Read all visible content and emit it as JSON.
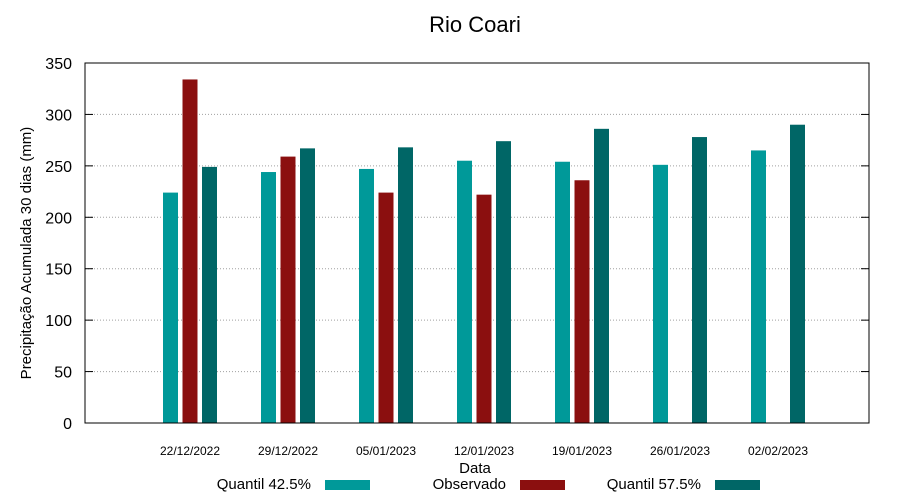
{
  "chart_data": {
    "type": "bar",
    "title": "Rio Coari",
    "xlabel": "Data",
    "ylabel": "Precipitação Acumulada 30 dias (mm)",
    "ylim": [
      0,
      350
    ],
    "yticks": [
      0,
      50,
      100,
      150,
      200,
      250,
      300,
      350
    ],
    "grid": true,
    "legend_position": "bottom",
    "categories": [
      "22/12/2022",
      "29/12/2022",
      "05/01/2023",
      "12/01/2023",
      "19/01/2023",
      "26/01/2023",
      "02/02/2023"
    ],
    "series": [
      {
        "name": "Quantil 42.5%",
        "color": "#009999",
        "values": [
          224,
          244,
          247,
          255,
          254,
          251,
          265
        ]
      },
      {
        "name": "Observado",
        "color": "#8b0f0f",
        "values": [
          334,
          259,
          224,
          222,
          236,
          null,
          null
        ]
      },
      {
        "name": "Quantil 57.5%",
        "color": "#006666",
        "values": [
          249,
          267,
          268,
          274,
          286,
          278,
          290
        ]
      }
    ]
  }
}
